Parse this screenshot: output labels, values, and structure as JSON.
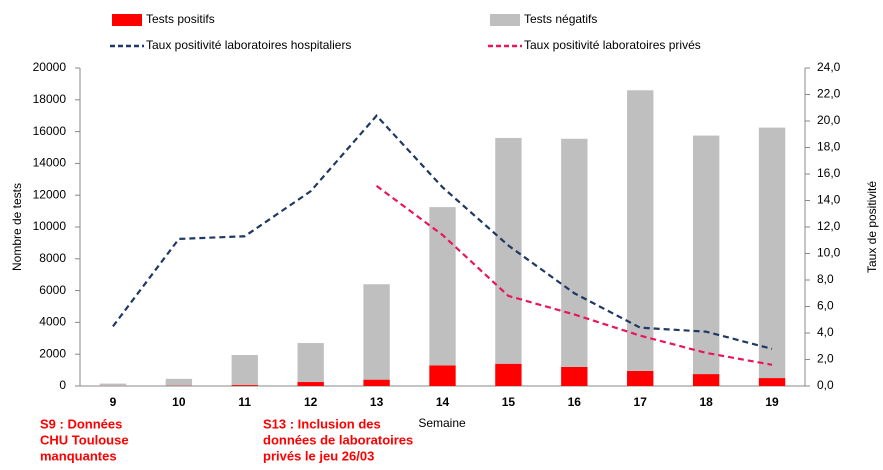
{
  "chart_data": {
    "type": "bar_line",
    "categories": [
      "9",
      "10",
      "11",
      "12",
      "13",
      "14",
      "15",
      "16",
      "17",
      "18",
      "19"
    ],
    "series": [
      {
        "name": "Tests positifs",
        "color": "#ff0000",
        "kind": "bar",
        "axis": "y",
        "values": [
          10,
          20,
          60,
          250,
          400,
          1300,
          1400,
          1200,
          950,
          750,
          500
        ]
      },
      {
        "name": "Tests négatifs",
        "color": "#bfbfbf",
        "kind": "bar",
        "axis": "y",
        "values": [
          140,
          430,
          1890,
          2450,
          6000,
          9950,
          14200,
          14350,
          17650,
          15000,
          15750
        ]
      },
      {
        "name": "Taux positivité laboratoires hospitaliers",
        "color": "#1f3864",
        "kind": "line",
        "axis": "y2",
        "values": [
          4.5,
          11.1,
          11.3,
          14.7,
          20.4,
          15.0,
          10.6,
          7.0,
          4.4,
          4.1,
          2.8
        ]
      },
      {
        "name": "Taux positivité laboratoires privés",
        "color": "#e8175d",
        "kind": "line",
        "axis": "y2",
        "values": [
          null,
          null,
          null,
          null,
          15.1,
          11.4,
          6.8,
          5.4,
          3.8,
          2.5,
          1.6
        ]
      }
    ],
    "ylim": [
      0,
      20000
    ],
    "yticks": [
      0,
      2000,
      4000,
      6000,
      8000,
      10000,
      12000,
      14000,
      16000,
      18000,
      20000
    ],
    "y2lim": [
      0,
      24
    ],
    "y2ticks": [
      {
        "value": 0,
        "label": "0,0"
      },
      {
        "value": 2,
        "label": "2,0"
      },
      {
        "value": 4,
        "label": "4,0"
      },
      {
        "value": 6,
        "label": "6,0"
      },
      {
        "value": 8,
        "label": "8,0"
      },
      {
        "value": 10,
        "label": "10,0"
      },
      {
        "value": 12,
        "label": "12,0"
      },
      {
        "value": 14,
        "label": "14,0"
      },
      {
        "value": 16,
        "label": "16,0"
      },
      {
        "value": 18,
        "label": "18,0"
      },
      {
        "value": 20,
        "label": "20,0"
      },
      {
        "value": 22,
        "label": "22,0"
      },
      {
        "value": 24,
        "label": "24,0"
      }
    ],
    "y_label": "Nombre de tests",
    "y2_label": "Taux de positivité",
    "x_label": "Semaine",
    "annotations": [
      {
        "lines": [
          "S9 : Données",
          "CHU Toulouse",
          " manquantes"
        ],
        "color": "#ff0000"
      },
      {
        "lines": [
          "S13 : Inclusion des",
          "données de laboratoires",
          "privés le jeu 26/03"
        ],
        "color": "#ff0000"
      }
    ]
  }
}
